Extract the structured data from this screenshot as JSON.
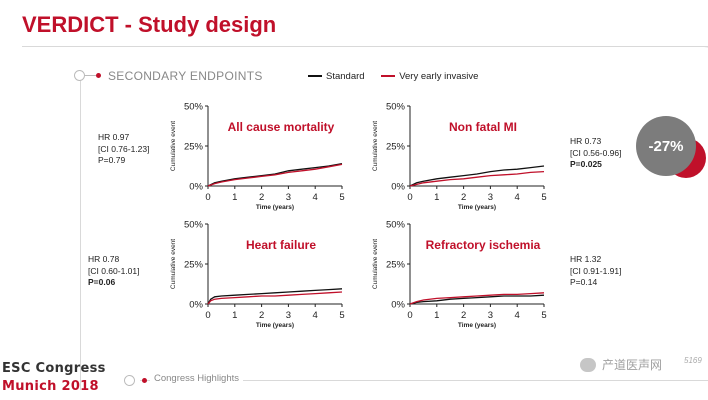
{
  "header": {
    "title": "VERDICT - Study design"
  },
  "section": {
    "label": "SECONDARY ENDPOINTS"
  },
  "legend": [
    {
      "name": "Standard",
      "color": "#111111"
    },
    {
      "name": "Very early invasive",
      "color": "#c0102a"
    }
  ],
  "badge": {
    "text": "-27%"
  },
  "hr_blocks": {
    "all_cause": {
      "hr": "HR 0.97",
      "ci": "[CI 0.76-1.23]",
      "p_label": "",
      "p": "P=0.79"
    },
    "heart_failure": {
      "hr": "HR 0.78",
      "ci": "[CI 0.60-1.01]",
      "p_label": "P=",
      "p": "0.06"
    },
    "non_fatal_mi": {
      "hr": "HR 0.73",
      "ci": "[CI 0.56-0.96]",
      "p_label": "",
      "p": "P=0.025"
    },
    "refractory": {
      "hr": "HR 1.32",
      "ci": "[CI 0.91-1.91]",
      "p_label": "",
      "p": "P=0.14"
    }
  },
  "footer": {
    "line1": "ESC Congress",
    "line2": "Munich 2018",
    "highlights": "Congress Highlights",
    "watermark": "产道医声网",
    "watermark_num": "5169"
  },
  "chart_data": [
    {
      "type": "line",
      "title": "All cause mortality",
      "xlabel": "Time (years)",
      "ylabel": "Cumulative event",
      "xlim": [
        0,
        5
      ],
      "ylim": [
        0,
        50
      ],
      "xticks": [
        "0",
        "1",
        "2",
        "3",
        "4",
        "5"
      ],
      "yticks": [
        "0%",
        "25%",
        "50%"
      ],
      "series": [
        {
          "name": "Standard",
          "color": "#111111",
          "x": [
            0,
            0.25,
            0.5,
            1,
            1.5,
            2,
            2.5,
            3,
            3.5,
            4,
            4.5,
            5
          ],
          "y": [
            0,
            2,
            3,
            4.5,
            5.5,
            6.5,
            7.5,
            9.5,
            10.5,
            11.5,
            12.5,
            14
          ]
        },
        {
          "name": "Very early invasive",
          "color": "#c0102a",
          "x": [
            0,
            0.25,
            0.5,
            1,
            1.5,
            2,
            2.5,
            3,
            3.5,
            4,
            4.5,
            5
          ],
          "y": [
            0,
            1.5,
            2.5,
            4,
            5,
            6,
            7,
            8.5,
            9.5,
            10.5,
            12,
            13.5
          ]
        }
      ]
    },
    {
      "type": "line",
      "title": "Non fatal MI",
      "xlabel": "Time (years)",
      "ylabel": "Cumulative event",
      "xlim": [
        0,
        5
      ],
      "ylim": [
        0,
        50
      ],
      "xticks": [
        "0",
        "1",
        "2",
        "3",
        "4",
        "5"
      ],
      "yticks": [
        "0%",
        "25%",
        "50%"
      ],
      "series": [
        {
          "name": "Standard",
          "color": "#111111",
          "x": [
            0,
            0.25,
            0.5,
            1,
            1.5,
            2,
            2.5,
            3,
            3.5,
            4,
            4.5,
            5
          ],
          "y": [
            0,
            2,
            3,
            4.5,
            5.5,
            6.5,
            7.5,
            9,
            10,
            10.5,
            11.5,
            12.5
          ]
        },
        {
          "name": "Very early invasive",
          "color": "#c0102a",
          "x": [
            0,
            0.25,
            0.5,
            1,
            1.5,
            2,
            2.5,
            3,
            3.5,
            4,
            4.5,
            5
          ],
          "y": [
            0,
            1,
            2,
            3,
            4,
            4.5,
            5.5,
            6.5,
            7,
            7.5,
            8.5,
            9
          ]
        }
      ]
    },
    {
      "type": "line",
      "title": "Heart failure",
      "xlabel": "Time (years)",
      "ylabel": "Cumulative event",
      "xlim": [
        0,
        5
      ],
      "ylim": [
        0,
        50
      ],
      "xticks": [
        "0",
        "1",
        "2",
        "3",
        "4",
        "5"
      ],
      "yticks": [
        "0%",
        "25%",
        "50%"
      ],
      "series": [
        {
          "name": "Standard",
          "color": "#111111",
          "x": [
            0,
            0.1,
            0.25,
            0.5,
            1,
            1.5,
            2,
            2.5,
            3,
            3.5,
            4,
            4.5,
            5
          ],
          "y": [
            0,
            3,
            4.5,
            5,
            5.5,
            6,
            6.5,
            7,
            7.5,
            8,
            8.5,
            9,
            9.5
          ]
        },
        {
          "name": "Very early invasive",
          "color": "#c0102a",
          "x": [
            0,
            0.1,
            0.25,
            0.5,
            1,
            1.5,
            2,
            2.5,
            3,
            3.5,
            4,
            4.5,
            5
          ],
          "y": [
            0,
            2,
            3,
            3.5,
            4,
            4.5,
            5,
            5,
            5.5,
            6,
            6.5,
            7,
            7.5
          ]
        }
      ]
    },
    {
      "type": "line",
      "title": "Refractory ischemia",
      "xlabel": "Time (years)",
      "ylabel": "Cumulative event",
      "xlim": [
        0,
        5
      ],
      "ylim": [
        0,
        50
      ],
      "xticks": [
        "0",
        "1",
        "2",
        "3",
        "4",
        "5"
      ],
      "yticks": [
        "0%",
        "25%",
        "50%"
      ],
      "series": [
        {
          "name": "Standard",
          "color": "#111111",
          "x": [
            0,
            0.25,
            0.5,
            1,
            1.5,
            2,
            2.5,
            3,
            3.5,
            4,
            4.5,
            5
          ],
          "y": [
            0,
            1,
            1.5,
            2,
            3,
            3.5,
            4,
            4.5,
            5,
            5,
            5,
            5.5
          ]
        },
        {
          "name": "Very early invasive",
          "color": "#c0102a",
          "x": [
            0,
            0.25,
            0.5,
            1,
            1.5,
            2,
            2.5,
            3,
            3.5,
            4,
            4.5,
            5
          ],
          "y": [
            0,
            1.5,
            2.5,
            3.5,
            4,
            4.5,
            5,
            5.5,
            6,
            6,
            6.5,
            7
          ]
        }
      ]
    }
  ]
}
